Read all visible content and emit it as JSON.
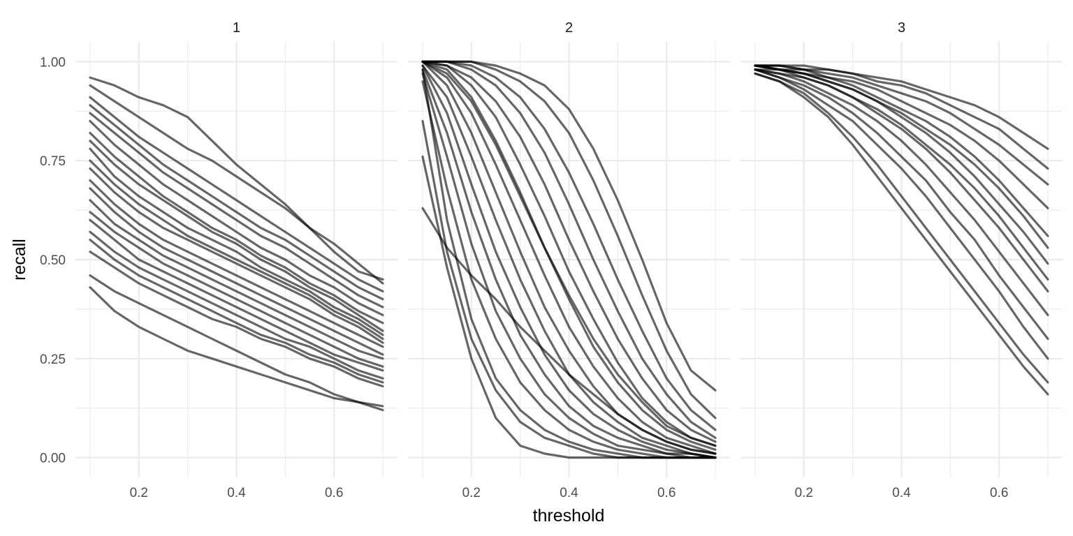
{
  "chart_data": {
    "type": "line",
    "facets": [
      "1",
      "2",
      "3"
    ],
    "xlabel": "threshold",
    "ylabel": "recall",
    "xlim": [
      0.1,
      0.7
    ],
    "ylim": [
      0,
      1
    ],
    "x_ticks": [
      0.2,
      0.4,
      0.6
    ],
    "x_tick_labels": [
      "0.2",
      "0.4",
      "0.6"
    ],
    "y_ticks": [
      0,
      0.25,
      0.5,
      0.75,
      1
    ],
    "y_tick_labels": [
      "0.00",
      "0.25",
      "0.50",
      "0.75",
      "1.00"
    ],
    "x": [
      0.1,
      0.15,
      0.2,
      0.25,
      0.3,
      0.35,
      0.4,
      0.45,
      0.5,
      0.55,
      0.6,
      0.65,
      0.7
    ],
    "grid": true,
    "legend": "none",
    "line_color": "#000000",
    "line_opacity": 0.6,
    "panels": [
      {
        "facet": "1",
        "series": [
          {
            "values": [
              0.96,
              0.94,
              0.91,
              0.89,
              0.86,
              0.8,
              0.74,
              0.69,
              0.64,
              0.58,
              0.52,
              0.47,
              0.45
            ]
          },
          {
            "values": [
              0.94,
              0.9,
              0.86,
              0.82,
              0.78,
              0.75,
              0.71,
              0.67,
              0.63,
              0.58,
              0.54,
              0.49,
              0.44
            ]
          },
          {
            "values": [
              0.91,
              0.86,
              0.81,
              0.77,
              0.73,
              0.69,
              0.65,
              0.61,
              0.57,
              0.53,
              0.49,
              0.45,
              0.42
            ]
          },
          {
            "values": [
              0.89,
              0.84,
              0.79,
              0.74,
              0.7,
              0.66,
              0.62,
              0.58,
              0.55,
              0.51,
              0.47,
              0.43,
              0.4
            ]
          },
          {
            "values": [
              0.87,
              0.82,
              0.77,
              0.72,
              0.68,
              0.64,
              0.6,
              0.56,
              0.53,
              0.49,
              0.45,
              0.41,
              0.38
            ]
          },
          {
            "values": [
              0.85,
              0.79,
              0.74,
              0.69,
              0.65,
              0.61,
              0.57,
              0.53,
              0.5,
              0.46,
              0.43,
              0.39,
              0.36
            ]
          },
          {
            "values": [
              0.82,
              0.76,
              0.71,
              0.66,
              0.62,
              0.58,
              0.55,
              0.51,
              0.48,
              0.44,
              0.41,
              0.37,
              0.34
            ]
          },
          {
            "values": [
              0.8,
              0.74,
              0.69,
              0.65,
              0.61,
              0.57,
              0.54,
              0.5,
              0.47,
              0.43,
              0.4,
              0.36,
              0.32
            ]
          },
          {
            "values": [
              0.78,
              0.71,
              0.66,
              0.62,
              0.58,
              0.55,
              0.52,
              0.48,
              0.45,
              0.42,
              0.38,
              0.35,
              0.31
            ]
          },
          {
            "values": [
              0.75,
              0.69,
              0.64,
              0.6,
              0.56,
              0.53,
              0.5,
              0.47,
              0.44,
              0.41,
              0.37,
              0.34,
              0.3
            ]
          },
          {
            "values": [
              0.73,
              0.67,
              0.62,
              0.58,
              0.55,
              0.52,
              0.49,
              0.46,
              0.43,
              0.4,
              0.36,
              0.33,
              0.29
            ]
          },
          {
            "values": [
              0.7,
              0.64,
              0.59,
              0.55,
              0.52,
              0.49,
              0.46,
              0.43,
              0.4,
              0.37,
              0.34,
              0.31,
              0.28
            ]
          },
          {
            "values": [
              0.68,
              0.62,
              0.57,
              0.53,
              0.5,
              0.47,
              0.44,
              0.41,
              0.38,
              0.35,
              0.32,
              0.29,
              0.26
            ]
          },
          {
            "values": [
              0.65,
              0.59,
              0.55,
              0.51,
              0.48,
              0.45,
              0.42,
              0.39,
              0.36,
              0.33,
              0.3,
              0.27,
              0.25
            ]
          },
          {
            "values": [
              0.62,
              0.57,
              0.53,
              0.49,
              0.46,
              0.43,
              0.4,
              0.37,
              0.34,
              0.31,
              0.28,
              0.25,
              0.23
            ]
          },
          {
            "values": [
              0.6,
              0.55,
              0.5,
              0.47,
              0.44,
              0.41,
              0.38,
              0.35,
              0.32,
              0.29,
              0.26,
              0.24,
              0.22
            ]
          },
          {
            "values": [
              0.57,
              0.52,
              0.48,
              0.45,
              0.42,
              0.39,
              0.36,
              0.33,
              0.3,
              0.28,
              0.25,
              0.22,
              0.2
            ]
          },
          {
            "values": [
              0.55,
              0.5,
              0.46,
              0.43,
              0.4,
              0.37,
              0.34,
              0.31,
              0.29,
              0.26,
              0.24,
              0.21,
              0.19
            ]
          },
          {
            "values": [
              0.52,
              0.48,
              0.44,
              0.41,
              0.38,
              0.35,
              0.33,
              0.3,
              0.28,
              0.25,
              0.23,
              0.2,
              0.18
            ]
          },
          {
            "values": [
              0.46,
              0.42,
              0.39,
              0.36,
              0.33,
              0.3,
              0.27,
              0.24,
              0.21,
              0.19,
              0.16,
              0.14,
              0.13
            ]
          },
          {
            "values": [
              0.43,
              0.37,
              0.33,
              0.3,
              0.27,
              0.25,
              0.23,
              0.21,
              0.19,
              0.17,
              0.15,
              0.14,
              0.12
            ]
          }
        ]
      },
      {
        "facet": "2",
        "series": [
          {
            "values": [
              1.0,
              1.0,
              1.0,
              0.99,
              0.97,
              0.94,
              0.88,
              0.78,
              0.65,
              0.5,
              0.34,
              0.22,
              0.17
            ]
          },
          {
            "values": [
              1.0,
              1.0,
              1.0,
              0.98,
              0.95,
              0.9,
              0.82,
              0.7,
              0.56,
              0.41,
              0.27,
              0.16,
              0.1
            ]
          },
          {
            "values": [
              1.0,
              1.0,
              0.99,
              0.96,
              0.91,
              0.83,
              0.72,
              0.59,
              0.45,
              0.32,
              0.2,
              0.12,
              0.07
            ]
          },
          {
            "values": [
              1.0,
              1.0,
              0.98,
              0.94,
              0.87,
              0.77,
              0.64,
              0.5,
              0.37,
              0.25,
              0.16,
              0.09,
              0.05
            ]
          },
          {
            "values": [
              1.0,
              0.99,
              0.96,
              0.9,
              0.81,
              0.69,
              0.55,
              0.42,
              0.3,
              0.2,
              0.12,
              0.07,
              0.04
            ]
          },
          {
            "values": [
              1.0,
              0.99,
              0.94,
              0.86,
              0.74,
              0.61,
              0.47,
              0.35,
              0.24,
              0.15,
              0.09,
              0.05,
              0.03
            ]
          },
          {
            "values": [
              1.0,
              0.98,
              0.91,
              0.8,
              0.67,
              0.53,
              0.4,
              0.28,
              0.19,
              0.12,
              0.07,
              0.04,
              0.02
            ]
          },
          {
            "values": [
              1.0,
              0.96,
              0.87,
              0.74,
              0.6,
              0.46,
              0.33,
              0.23,
              0.15,
              0.09,
              0.05,
              0.03,
              0.01
            ]
          },
          {
            "values": [
              1.0,
              0.94,
              0.82,
              0.67,
              0.52,
              0.38,
              0.27,
              0.18,
              0.11,
              0.07,
              0.04,
              0.02,
              0.01
            ]
          },
          {
            "values": [
              0.99,
              0.91,
              0.76,
              0.6,
              0.45,
              0.32,
              0.21,
              0.14,
              0.09,
              0.05,
              0.03,
              0.01,
              0.0
            ]
          },
          {
            "values": [
              0.99,
              0.87,
              0.69,
              0.52,
              0.38,
              0.26,
              0.17,
              0.11,
              0.07,
              0.04,
              0.02,
              0.01,
              0.0
            ]
          },
          {
            "values": [
              0.98,
              0.82,
              0.62,
              0.45,
              0.31,
              0.21,
              0.13,
              0.08,
              0.05,
              0.03,
              0.01,
              0.01,
              0.0
            ]
          },
          {
            "values": [
              0.97,
              0.76,
              0.54,
              0.37,
              0.25,
              0.16,
              0.1,
              0.06,
              0.03,
              0.02,
              0.01,
              0.0,
              0.0
            ]
          },
          {
            "values": [
              0.95,
              0.68,
              0.45,
              0.3,
              0.19,
              0.12,
              0.07,
              0.04,
              0.02,
              0.01,
              0.0,
              0.0,
              0.0
            ]
          },
          {
            "values": [
              0.98,
              0.6,
              0.35,
              0.2,
              0.12,
              0.07,
              0.04,
              0.02,
              0.01,
              0.0,
              0.0,
              0.0,
              0.0
            ]
          },
          {
            "values": [
              0.85,
              0.52,
              0.3,
              0.17,
              0.09,
              0.05,
              0.03,
              0.01,
              0.0,
              0.0,
              0.0,
              0.0,
              0.0
            ]
          },
          {
            "values": [
              0.76,
              0.48,
              0.25,
              0.1,
              0.03,
              0.01,
              0.0,
              0.0,
              0.0,
              0.0,
              0.0,
              0.0,
              0.0
            ]
          },
          {
            "values": [
              0.63,
              0.53,
              0.46,
              0.4,
              0.33,
              0.27,
              0.21,
              0.16,
              0.11,
              0.07,
              0.04,
              0.02,
              0.01
            ]
          },
          {
            "values": [
              1.0,
              0.97,
              0.9,
              0.79,
              0.66,
              0.53,
              0.41,
              0.3,
              0.21,
              0.14,
              0.08,
              0.05,
              0.03
            ]
          }
        ]
      },
      {
        "facet": "3",
        "series": [
          {
            "values": [
              0.99,
              0.99,
              0.99,
              0.98,
              0.97,
              0.96,
              0.95,
              0.93,
              0.91,
              0.89,
              0.86,
              0.82,
              0.78
            ]
          },
          {
            "values": [
              0.99,
              0.99,
              0.98,
              0.98,
              0.97,
              0.95,
              0.94,
              0.92,
              0.89,
              0.86,
              0.83,
              0.78,
              0.73
            ]
          },
          {
            "values": [
              0.99,
              0.99,
              0.98,
              0.97,
              0.96,
              0.94,
              0.92,
              0.9,
              0.87,
              0.83,
              0.79,
              0.74,
              0.69
            ]
          },
          {
            "values": [
              0.99,
              0.98,
              0.98,
              0.96,
              0.95,
              0.93,
              0.9,
              0.87,
              0.84,
              0.8,
              0.75,
              0.69,
              0.63
            ]
          },
          {
            "values": [
              0.99,
              0.98,
              0.97,
              0.96,
              0.94,
              0.91,
              0.88,
              0.85,
              0.81,
              0.76,
              0.7,
              0.63,
              0.56
            ]
          },
          {
            "values": [
              0.98,
              0.98,
              0.97,
              0.95,
              0.93,
              0.9,
              0.86,
              0.82,
              0.77,
              0.71,
              0.64,
              0.57,
              0.49
            ]
          },
          {
            "values": [
              0.98,
              0.97,
              0.96,
              0.94,
              0.91,
              0.87,
              0.83,
              0.78,
              0.72,
              0.65,
              0.58,
              0.5,
              0.42
            ]
          },
          {
            "values": [
              0.98,
              0.97,
              0.95,
              0.92,
              0.89,
              0.85,
              0.8,
              0.74,
              0.67,
              0.6,
              0.52,
              0.44,
              0.36
            ]
          },
          {
            "values": [
              0.98,
              0.96,
              0.94,
              0.91,
              0.87,
              0.82,
              0.76,
              0.7,
              0.62,
              0.55,
              0.46,
              0.38,
              0.3
            ]
          },
          {
            "values": [
              0.98,
              0.96,
              0.93,
              0.89,
              0.85,
              0.79,
              0.73,
              0.66,
              0.58,
              0.5,
              0.42,
              0.33,
              0.25
            ]
          },
          {
            "values": [
              0.97,
              0.95,
              0.92,
              0.87,
              0.81,
              0.74,
              0.66,
              0.58,
              0.5,
              0.42,
              0.34,
              0.26,
              0.19
            ]
          },
          {
            "values": [
              0.97,
              0.95,
              0.91,
              0.86,
              0.79,
              0.71,
              0.63,
              0.55,
              0.47,
              0.39,
              0.31,
              0.23,
              0.16
            ]
          },
          {
            "values": [
              0.99,
              0.98,
              0.97,
              0.95,
              0.93,
              0.9,
              0.87,
              0.83,
              0.79,
              0.74,
              0.68,
              0.61,
              0.53
            ]
          },
          {
            "values": [
              0.99,
              0.98,
              0.96,
              0.94,
              0.91,
              0.88,
              0.84,
              0.79,
              0.74,
              0.68,
              0.61,
              0.53,
              0.45
            ]
          }
        ]
      }
    ]
  }
}
